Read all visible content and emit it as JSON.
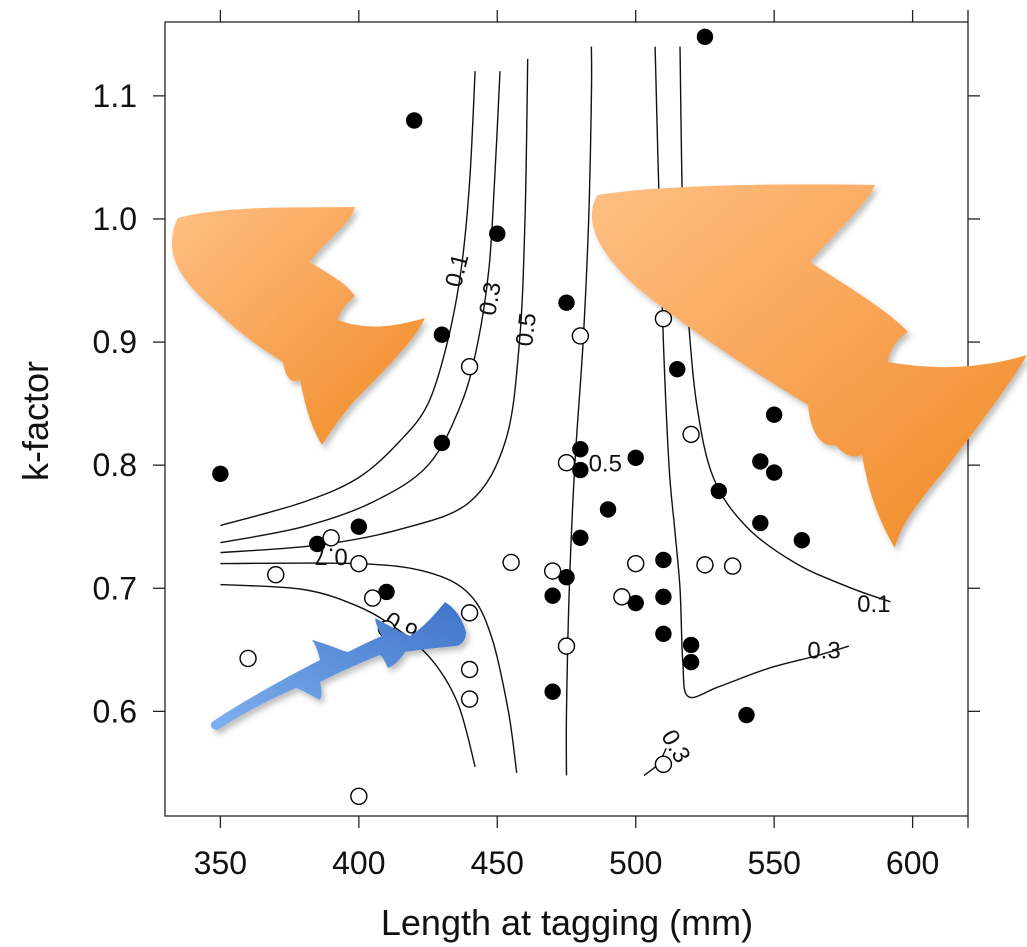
{
  "chart_data": {
    "type": "scatter",
    "title": "",
    "xlabel": "Length at tagging (mm)",
    "ylabel": "k-factor",
    "xlim": [
      330,
      620
    ],
    "ylim": [
      0.515,
      1.16
    ],
    "x_ticks": [
      350,
      400,
      450,
      500,
      550,
      600
    ],
    "x_tick_labels": [
      "350",
      "400",
      "450",
      "500",
      "550",
      "600"
    ],
    "y_ticks": [
      0.6,
      0.7,
      0.8,
      0.9,
      1.0,
      1.1
    ],
    "y_tick_labels": [
      "0.6",
      "0.7",
      "0.8",
      "0.9",
      "1.0",
      "1.1"
    ],
    "grid": false,
    "legend": "none",
    "series": [
      {
        "marker": "filled",
        "color": "#000000",
        "points": [
          [
            350,
            0.793
          ],
          [
            420,
            1.08
          ],
          [
            430,
            0.906
          ],
          [
            430,
            0.818
          ],
          [
            450,
            0.988
          ],
          [
            475,
            0.932
          ],
          [
            385,
            0.736
          ],
          [
            400,
            0.75
          ],
          [
            410,
            0.697
          ],
          [
            470,
            0.694
          ],
          [
            475,
            0.709
          ],
          [
            470,
            0.616
          ],
          [
            480,
            0.813
          ],
          [
            480,
            0.796
          ],
          [
            480,
            0.741
          ],
          [
            490,
            0.764
          ],
          [
            500,
            0.806
          ],
          [
            500,
            0.688
          ],
          [
            510,
            0.723
          ],
          [
            510,
            0.693
          ],
          [
            510,
            0.663
          ],
          [
            515,
            0.878
          ],
          [
            520,
            0.654
          ],
          [
            520,
            0.64
          ],
          [
            525,
            1.148
          ],
          [
            530,
            0.779
          ],
          [
            540,
            0.597
          ],
          [
            545,
            0.803
          ],
          [
            545,
            0.753
          ],
          [
            550,
            0.841
          ],
          [
            550,
            0.794
          ],
          [
            560,
            0.739
          ]
        ]
      },
      {
        "marker": "open",
        "color": "#000000",
        "points": [
          [
            360,
            0.643
          ],
          [
            370,
            0.711
          ],
          [
            390,
            0.741
          ],
          [
            400,
            0.72
          ],
          [
            400,
            0.531
          ],
          [
            405,
            0.692
          ],
          [
            410,
            0.667
          ],
          [
            440,
            0.88
          ],
          [
            440,
            0.68
          ],
          [
            440,
            0.634
          ],
          [
            440,
            0.61
          ],
          [
            455,
            0.721
          ],
          [
            470,
            0.714
          ],
          [
            475,
            0.802
          ],
          [
            475,
            0.653
          ],
          [
            480,
            0.905
          ],
          [
            495,
            0.693
          ],
          [
            500,
            0.72
          ],
          [
            510,
            0.919
          ],
          [
            510,
            0.557
          ],
          [
            520,
            0.825
          ],
          [
            525,
            0.719
          ],
          [
            535,
            0.718
          ]
        ]
      }
    ],
    "contour_lines": [
      {
        "label": "0.1",
        "points": [
          [
            350,
            0.751
          ],
          [
            380,
            0.77
          ],
          [
            400,
            0.79
          ],
          [
            415,
            0.82
          ],
          [
            425,
            0.85
          ],
          [
            432,
            0.9
          ],
          [
            437,
            0.96
          ],
          [
            440,
            1.03
          ],
          [
            442,
            1.12
          ]
        ]
      },
      {
        "label": "0.3",
        "points": [
          [
            350,
            0.737
          ],
          [
            380,
            0.75
          ],
          [
            405,
            0.77
          ],
          [
            425,
            0.8
          ],
          [
            437,
            0.85
          ],
          [
            443,
            0.9
          ],
          [
            447,
            0.96
          ],
          [
            449,
            1.03
          ],
          [
            451,
            1.12
          ]
        ]
      },
      {
        "label": "0.5",
        "points": [
          [
            350,
            0.729
          ],
          [
            385,
            0.735
          ],
          [
            415,
            0.748
          ],
          [
            440,
            0.77
          ],
          [
            453,
            0.82
          ],
          [
            458,
            0.9
          ],
          [
            460,
            1.0
          ],
          [
            461,
            1.13
          ]
        ]
      },
      {
        "label": "0.7",
        "points": [
          [
            350,
            0.72
          ],
          [
            400,
            0.72
          ],
          [
            425,
            0.713
          ],
          [
            440,
            0.695
          ],
          [
            448,
            0.66
          ],
          [
            454,
            0.6
          ],
          [
            457,
            0.55
          ]
        ]
      },
      {
        "label": "0.9",
        "points": [
          [
            350,
            0.703
          ],
          [
            380,
            0.699
          ],
          [
            400,
            0.685
          ],
          [
            415,
            0.665
          ],
          [
            427,
            0.64
          ],
          [
            436,
            0.605
          ],
          [
            442,
            0.555
          ]
        ]
      },
      {
        "label": "0.5",
        "points": [
          [
            475,
            0.548
          ],
          [
            475,
            0.6
          ],
          [
            476,
            0.7
          ],
          [
            478,
            0.8
          ],
          [
            481,
            0.9
          ],
          [
            483,
            1.0
          ],
          [
            484,
            1.1
          ],
          [
            484,
            1.14
          ]
        ]
      },
      {
        "label": "0.3",
        "points": [
          [
            507,
            1.14
          ],
          [
            508,
            1.05
          ],
          [
            510,
            0.9
          ],
          [
            512,
            0.8
          ],
          [
            514,
            0.75
          ],
          [
            516,
            0.7
          ],
          [
            517,
            0.64
          ],
          [
            519,
            0.612
          ],
          [
            530,
            0.62
          ],
          [
            548,
            0.635
          ],
          [
            565,
            0.645
          ],
          [
            577,
            0.653
          ]
        ]
      },
      {
        "label": "0.1",
        "points": [
          [
            516,
            1.14
          ],
          [
            517,
            1.0
          ],
          [
            519,
            0.92
          ],
          [
            522,
            0.85
          ],
          [
            528,
            0.79
          ],
          [
            540,
            0.75
          ],
          [
            558,
            0.72
          ],
          [
            578,
            0.7
          ],
          [
            592,
            0.689
          ]
        ]
      },
      {
        "label": "0.3",
        "points": [
          [
            503,
            0.548
          ],
          [
            508,
            0.557
          ],
          [
            511,
            0.57
          ]
        ]
      }
    ],
    "contour_labels": [
      {
        "text": "0.1",
        "x": 436,
        "y": 0.958,
        "rotate": -76
      },
      {
        "text": "0.3",
        "x": 448,
        "y": 0.935,
        "rotate": -80
      },
      {
        "text": "0.5",
        "x": 461,
        "y": 0.91,
        "rotate": -83
      },
      {
        "text": "0.5",
        "x": 489,
        "y": 0.8,
        "rotate": 0
      },
      {
        "text": "0.7",
        "x": 390,
        "y": 0.727,
        "rotate": 180
      },
      {
        "text": "0.9",
        "x": 415,
        "y": 0.668,
        "rotate": 30
      },
      {
        "text": "0.1",
        "x": 586,
        "y": 0.686,
        "rotate": 0
      },
      {
        "text": "0.3",
        "x": 568,
        "y": 0.648,
        "rotate": 0
      },
      {
        "text": "0.3",
        "x": 514,
        "y": 0.571,
        "rotate": 60
      }
    ],
    "fish_colors": {
      "large_fish": "#f59a3c",
      "small_fish": "#4f86d8"
    }
  }
}
